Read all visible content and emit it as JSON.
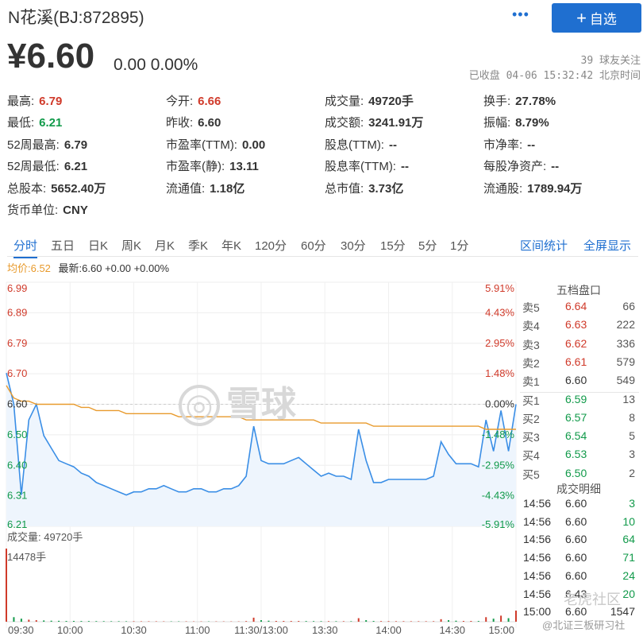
{
  "header": {
    "title": "N花溪(BJ:872895)",
    "more_label": "•••",
    "follow_label": "自选",
    "price": "¥6.60",
    "change": "0.00 0.00%",
    "fans": "39 球友关注",
    "status": "已收盘 04-06 15:32:42 北京时间"
  },
  "quote": [
    {
      "label": "最高:",
      "value": "6.79",
      "color": "red"
    },
    {
      "label": "今开:",
      "value": "6.66",
      "color": "red"
    },
    {
      "label": "成交量:",
      "value": "49720手",
      "color": ""
    },
    {
      "label": "换手:",
      "value": "27.78%",
      "color": ""
    },
    {
      "label": "最低:",
      "value": "6.21",
      "color": "green"
    },
    {
      "label": "昨收:",
      "value": "6.60",
      "color": ""
    },
    {
      "label": "成交额:",
      "value": "3241.91万",
      "color": ""
    },
    {
      "label": "振幅:",
      "value": "8.79%",
      "color": ""
    },
    {
      "label": "52周最高:",
      "value": "6.79",
      "color": ""
    },
    {
      "label": "市盈率(TTM):",
      "value": "0.00",
      "color": ""
    },
    {
      "label": "股息(TTM):",
      "value": "--",
      "color": ""
    },
    {
      "label": "市净率:",
      "value": "--",
      "color": ""
    },
    {
      "label": "52周最低:",
      "value": "6.21",
      "color": ""
    },
    {
      "label": "市盈率(静):",
      "value": "13.11",
      "color": ""
    },
    {
      "label": "股息率(TTM):",
      "value": "--",
      "color": ""
    },
    {
      "label": "每股净资产:",
      "value": "--",
      "color": ""
    },
    {
      "label": "总股本:",
      "value": "5652.40万",
      "color": ""
    },
    {
      "label": "流通值:",
      "value": "1.18亿",
      "color": ""
    },
    {
      "label": "总市值:",
      "value": "3.73亿",
      "color": ""
    },
    {
      "label": "流通股:",
      "value": "1789.94万",
      "color": ""
    },
    {
      "label": "货币单位:",
      "value": "CNY",
      "color": ""
    }
  ],
  "tabs": [
    "分时",
    "五日",
    "日K",
    "周K",
    "月K",
    "季K",
    "年K",
    "120分",
    "60分",
    "30分",
    "15分",
    "5分",
    "1分"
  ],
  "tabs_right": [
    "区间统计",
    "全屏显示"
  ],
  "avg_line": {
    "avg": "均价:6.52",
    "latest": "最新:6.60 +0.00 +0.00%"
  },
  "volume": {
    "label": "成交量: 49720手",
    "max_label": "14478手"
  },
  "orderbook": {
    "title": "五档盘口",
    "rows": [
      {
        "side": "卖5",
        "price": "6.64",
        "vol": "66",
        "color": "red"
      },
      {
        "side": "卖4",
        "price": "6.63",
        "vol": "222",
        "color": "red"
      },
      {
        "side": "卖3",
        "price": "6.62",
        "vol": "336",
        "color": "red"
      },
      {
        "side": "卖2",
        "price": "6.61",
        "vol": "579",
        "color": "red"
      },
      {
        "side": "卖1",
        "price": "6.60",
        "vol": "549",
        "color": "gray"
      },
      {
        "side": "买1",
        "price": "6.59",
        "vol": "13",
        "color": "green"
      },
      {
        "side": "买2",
        "price": "6.57",
        "vol": "8",
        "color": "green"
      },
      {
        "side": "买3",
        "price": "6.54",
        "vol": "5",
        "color": "green"
      },
      {
        "side": "买4",
        "price": "6.53",
        "vol": "3",
        "color": "green"
      },
      {
        "side": "买5",
        "price": "6.50",
        "vol": "2",
        "color": "green"
      }
    ]
  },
  "trades": {
    "title": "成交明细",
    "rows": [
      {
        "time": "14:56",
        "price": "6.60",
        "vol": "3",
        "color": "green"
      },
      {
        "time": "14:56",
        "price": "6.60",
        "vol": "10",
        "color": "green"
      },
      {
        "time": "14:56",
        "price": "6.60",
        "vol": "64",
        "color": "green"
      },
      {
        "time": "14:56",
        "price": "6.60",
        "vol": "71",
        "color": "green"
      },
      {
        "time": "14:56",
        "price": "6.60",
        "vol": "24",
        "color": "green"
      },
      {
        "time": "14:56",
        "price": "6.43",
        "vol": "20",
        "color": "green"
      },
      {
        "time": "15:00",
        "price": "6.60",
        "vol": "1547",
        "color": "gray"
      }
    ]
  },
  "watermarks": {
    "center": "雪球",
    "corner": "老虎社区",
    "source": "@北证三板研习社"
  },
  "colors": {
    "accent": "#1f6fd0",
    "up": "#d03a2a",
    "down": "#119a4a",
    "price_line": "#3a8ee6",
    "avg_line": "#e89a2c"
  },
  "chart_data": {
    "type": "line",
    "x_ticks": [
      "09:30",
      "10:00",
      "10:30",
      "11:00",
      "11:30/13:00",
      "13:30",
      "14:00",
      "14:30",
      "15:00"
    ],
    "y_ticks_left": [
      "6.99",
      "6.89",
      "6.79",
      "6.70",
      "6.60",
      "6.50",
      "6.40",
      "6.31",
      "6.21"
    ],
    "y_ticks_right": [
      "5.91%",
      "4.43%",
      "2.95%",
      "1.48%",
      "0.00%",
      "-1.48%",
      "-2.95%",
      "-4.43%",
      "-5.91%"
    ],
    "ylim": [
      6.21,
      6.99
    ],
    "series": [
      {
        "name": "最新",
        "values": [
          6.7,
          6.6,
          6.31,
          6.55,
          6.6,
          6.5,
          6.46,
          6.42,
          6.41,
          6.4,
          6.38,
          6.37,
          6.35,
          6.34,
          6.33,
          6.32,
          6.31,
          6.32,
          6.32,
          6.33,
          6.33,
          6.34,
          6.33,
          6.32,
          6.32,
          6.33,
          6.33,
          6.32,
          6.32,
          6.33,
          6.33,
          6.34,
          6.37,
          6.53,
          6.42,
          6.41,
          6.41,
          6.41,
          6.42,
          6.43,
          6.41,
          6.39,
          6.37,
          6.38,
          6.37,
          6.37,
          6.36,
          6.52,
          6.42,
          6.35,
          6.35,
          6.36,
          6.36,
          6.36,
          6.36,
          6.36,
          6.36,
          6.37,
          6.48,
          6.44,
          6.41,
          6.41,
          6.41,
          6.4,
          6.55,
          6.45,
          6.58,
          6.45,
          6.6
        ]
      },
      {
        "name": "均价",
        "values": [
          6.66,
          6.62,
          6.61,
          6.61,
          6.6,
          6.6,
          6.6,
          6.6,
          6.6,
          6.6,
          6.59,
          6.59,
          6.58,
          6.58,
          6.58,
          6.58,
          6.57,
          6.57,
          6.57,
          6.57,
          6.57,
          6.57,
          6.57,
          6.56,
          6.56,
          6.56,
          6.56,
          6.56,
          6.56,
          6.56,
          6.56,
          6.56,
          6.55,
          6.55,
          6.55,
          6.55,
          6.55,
          6.55,
          6.55,
          6.55,
          6.55,
          6.55,
          6.54,
          6.54,
          6.54,
          6.54,
          6.54,
          6.54,
          6.54,
          6.53,
          6.53,
          6.53,
          6.53,
          6.53,
          6.53,
          6.53,
          6.53,
          6.53,
          6.53,
          6.53,
          6.53,
          6.53,
          6.53,
          6.53,
          6.52,
          6.52,
          6.52,
          6.52,
          6.52
        ]
      }
    ],
    "volume_max": 14478,
    "volume": [
      14478,
      900,
      600,
      400,
      300,
      250,
      200,
      180,
      150,
      160,
      140,
      130,
      120,
      110,
      100,
      100,
      90,
      90,
      80,
      80,
      80,
      70,
      70,
      70,
      70,
      60,
      60,
      60,
      60,
      60,
      60,
      60,
      120,
      800,
      300,
      200,
      150,
      150,
      140,
      140,
      130,
      120,
      110,
      110,
      100,
      100,
      100,
      700,
      300,
      150,
      120,
      110,
      100,
      100,
      90,
      90,
      90,
      100,
      500,
      300,
      200,
      150,
      150,
      140,
      900,
      600,
      1200,
      700,
      2200
    ]
  }
}
